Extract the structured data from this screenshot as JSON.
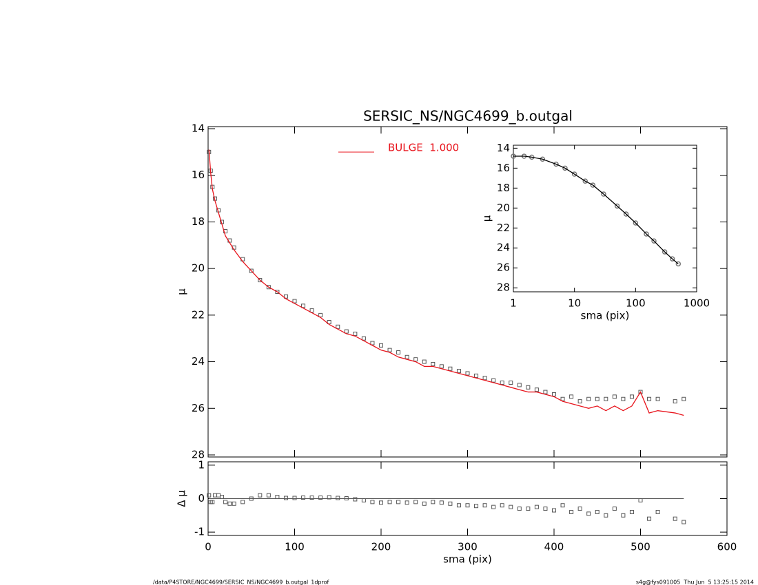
{
  "footer": {
    "left": "/data/P4STORE/NGC4699/SERSIC_NS/NGC4699_b.outgal_1dprof",
    "right": "s4g@fys091005  Thu Jun  5 13:25:15 2014"
  },
  "chart_data": [
    {
      "type": "scatter",
      "title": "SERSIC_NS/NGC4699_b.outgal",
      "y_label": "μ",
      "xlim": [
        0,
        600
      ],
      "ylim": [
        28,
        14
      ],
      "xticks": [
        0,
        100,
        200,
        300,
        400,
        500,
        600
      ],
      "yticks": [
        14,
        16,
        18,
        20,
        22,
        24,
        26,
        28
      ],
      "x": [
        1,
        3,
        5,
        8,
        12,
        16,
        20,
        25,
        30,
        40,
        50,
        60,
        70,
        80,
        90,
        100,
        110,
        120,
        130,
        140,
        150,
        160,
        170,
        180,
        190,
        200,
        210,
        220,
        230,
        240,
        250,
        260,
        270,
        280,
        290,
        300,
        310,
        320,
        330,
        340,
        350,
        360,
        370,
        380,
        390,
        400,
        410,
        420,
        430,
        440,
        450,
        460,
        470,
        480,
        490,
        500,
        510,
        520,
        540,
        550
      ],
      "series": [
        {
          "color": "#555555",
          "marker": "square",
          "values": [
            15.0,
            15.8,
            16.5,
            17.0,
            17.5,
            18.0,
            18.4,
            18.8,
            19.1,
            19.6,
            20.1,
            20.5,
            20.8,
            21.0,
            21.2,
            21.4,
            21.6,
            21.8,
            22.0,
            22.3,
            22.5,
            22.7,
            22.8,
            23.0,
            23.2,
            23.3,
            23.5,
            23.6,
            23.8,
            23.9,
            24.0,
            24.1,
            24.2,
            24.3,
            24.4,
            24.5,
            24.6,
            24.7,
            24.8,
            24.9,
            24.9,
            25.0,
            25.1,
            25.2,
            25.3,
            25.4,
            25.6,
            25.5,
            25.7,
            25.6,
            25.6,
            25.6,
            25.5,
            25.6,
            25.5,
            25.3,
            25.6,
            25.6,
            25.7,
            25.6
          ]
        },
        {
          "name": "BULGE  1.000",
          "color": "#e8141c",
          "line": true,
          "values": [
            14.9,
            15.9,
            16.6,
            17.1,
            17.6,
            18.1,
            18.6,
            18.9,
            19.2,
            19.7,
            20.1,
            20.5,
            20.8,
            21.0,
            21.3,
            21.5,
            21.7,
            21.9,
            22.1,
            22.4,
            22.6,
            22.8,
            22.9,
            23.1,
            23.3,
            23.5,
            23.6,
            23.8,
            23.9,
            24.0,
            24.2,
            24.2,
            24.3,
            24.4,
            24.5,
            24.6,
            24.7,
            24.8,
            24.9,
            25.0,
            25.1,
            25.2,
            25.3,
            25.3,
            25.4,
            25.5,
            25.7,
            25.8,
            25.9,
            26.0,
            25.9,
            26.1,
            25.9,
            26.1,
            25.9,
            25.3,
            26.2,
            26.1,
            26.2,
            26.3
          ]
        }
      ]
    },
    {
      "type": "scatter",
      "x_label": "sma (pix)",
      "y_label": "Δ μ",
      "xlim": [
        0,
        600
      ],
      "ylim": [
        -1.1,
        1.1
      ],
      "xticks": [
        0,
        100,
        200,
        300,
        400,
        500,
        600
      ],
      "yticks": [
        -1,
        0,
        1
      ],
      "reference_line": 0,
      "x": [
        1,
        3,
        5,
        8,
        12,
        16,
        20,
        25,
        30,
        40,
        50,
        60,
        70,
        80,
        90,
        100,
        110,
        120,
        130,
        140,
        150,
        160,
        170,
        180,
        190,
        200,
        210,
        220,
        230,
        240,
        250,
        260,
        270,
        280,
        290,
        300,
        310,
        320,
        330,
        340,
        350,
        360,
        370,
        380,
        390,
        400,
        410,
        420,
        430,
        440,
        450,
        460,
        470,
        480,
        490,
        500,
        510,
        520,
        540,
        550
      ],
      "series": [
        {
          "color": "#555555",
          "marker": "square",
          "values": [
            0.1,
            -0.1,
            -0.1,
            0.1,
            0.1,
            0.05,
            -0.1,
            -0.15,
            -0.15,
            -0.1,
            0,
            0.1,
            0.1,
            0.05,
            0.02,
            0.02,
            0.03,
            0.03,
            0.03,
            0.04,
            0.02,
            0.01,
            -0.02,
            -0.05,
            -0.1,
            -0.12,
            -0.1,
            -0.1,
            -0.12,
            -0.1,
            -0.15,
            -0.1,
            -0.12,
            -0.15,
            -0.2,
            -0.2,
            -0.22,
            -0.2,
            -0.25,
            -0.2,
            -0.25,
            -0.3,
            -0.3,
            -0.25,
            -0.3,
            -0.35,
            -0.2,
            -0.4,
            -0.3,
            -0.45,
            -0.4,
            -0.5,
            -0.3,
            -0.5,
            -0.4,
            -0.05,
            -0.6,
            -0.4,
            -0.6,
            -0.7
          ]
        }
      ]
    },
    {
      "type": "scatter",
      "x_label": "sma (pix)",
      "y_label": "μ",
      "xscale": "log",
      "xlim": [
        1,
        1000
      ],
      "ylim": [
        28.4,
        13.7
      ],
      "xticks": [
        1,
        10,
        100,
        1000
      ],
      "yticks": [
        14,
        16,
        18,
        20,
        22,
        24,
        26,
        28
      ],
      "x": [
        1,
        1.5,
        2,
        3,
        5,
        7,
        10,
        15,
        20,
        30,
        50,
        70,
        100,
        150,
        200,
        300,
        400,
        500
      ],
      "series": [
        {
          "color": "#777777",
          "marker": "circle",
          "line": true,
          "line_color": "#000000",
          "values": [
            14.8,
            14.8,
            14.9,
            15.1,
            15.6,
            16.0,
            16.6,
            17.3,
            17.7,
            18.6,
            19.8,
            20.6,
            21.5,
            22.6,
            23.3,
            24.4,
            25.1,
            25.6
          ]
        }
      ]
    }
  ]
}
